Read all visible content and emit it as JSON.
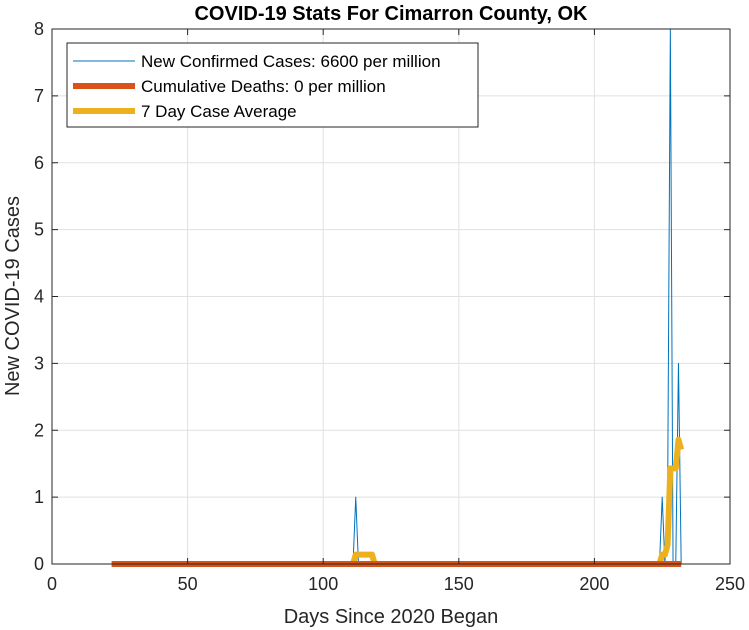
{
  "chart_data": {
    "type": "line",
    "title": "COVID-19 Stats For Cimarron County, OK",
    "xlabel": "Days Since 2020 Began",
    "ylabel": "New COVID-19 Cases",
    "xlim": [
      0,
      250
    ],
    "ylim": [
      0,
      8
    ],
    "xticks": [
      0,
      50,
      100,
      150,
      200,
      250
    ],
    "yticks": [
      0,
      1,
      2,
      3,
      4,
      5,
      6,
      7,
      8
    ],
    "grid": true,
    "legend_position": "top-left",
    "series": [
      {
        "name": "New Confirmed Cases: 6600 per million",
        "color": "#0072BD",
        "line_width": "thin",
        "x": [
          22,
          111,
          112,
          113,
          224,
          225,
          226,
          227,
          228,
          229,
          230,
          231,
          232
        ],
        "y": [
          0,
          0,
          1,
          0,
          0,
          1,
          0,
          1,
          8,
          0,
          0,
          3,
          0
        ]
      },
      {
        "name": "Cumulative Deaths: 0 per million",
        "color": "#D95319",
        "line_width": "thick",
        "x": [
          22,
          232
        ],
        "y": [
          0,
          0
        ]
      },
      {
        "name": "7 Day Case Average",
        "color": "#EDB120",
        "line_width": "thick",
        "x": [
          22,
          111,
          112,
          113,
          117,
          118,
          119,
          224,
          225,
          226,
          227,
          228,
          229,
          230,
          231,
          232
        ],
        "y": [
          0,
          0,
          0.14,
          0.14,
          0.14,
          0.14,
          0,
          0,
          0.14,
          0.14,
          0.29,
          1.43,
          1.43,
          1.43,
          1.86,
          1.71
        ]
      }
    ]
  }
}
